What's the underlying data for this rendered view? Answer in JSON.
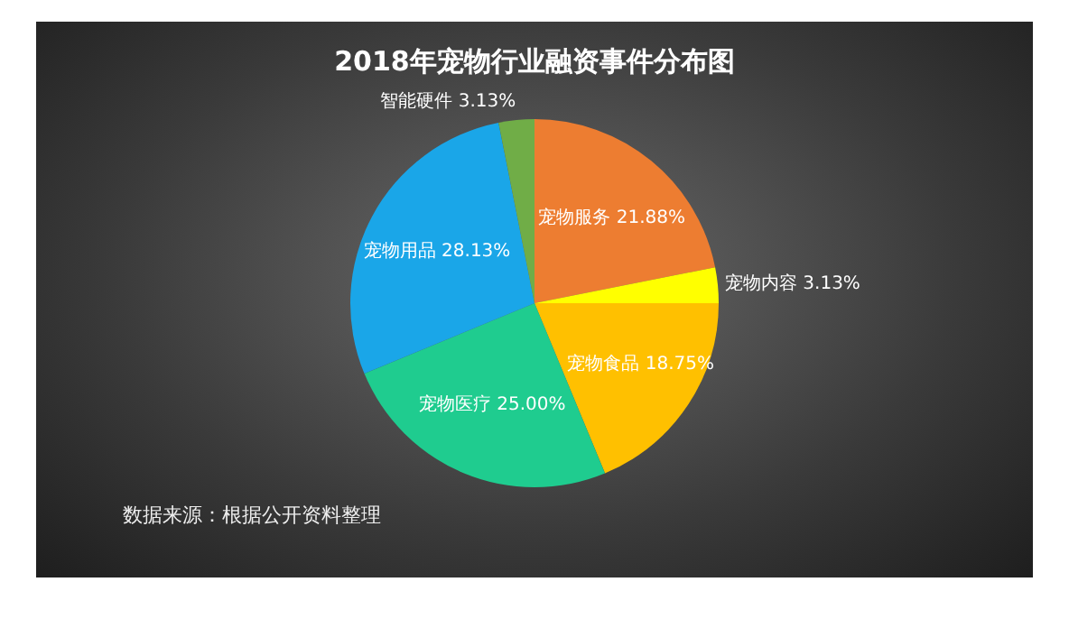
{
  "chart_data": {
    "type": "pie",
    "title": "2018年宠物行业融资事件分布图",
    "categories": [
      "宠物服务",
      "宠物内容",
      "宠物食品",
      "宠物医疗",
      "宠物用品",
      "智能硬件"
    ],
    "values": [
      21.88,
      3.13,
      18.75,
      25.0,
      28.13,
      3.13
    ],
    "value_labels": [
      "21.88%",
      "3.13%",
      "18.75%",
      "25.00%",
      "28.13%",
      "3.13%"
    ],
    "colors": [
      "#ed7d31",
      "#ffff00",
      "#ffc000",
      "#1fcc8f",
      "#1aa6e8",
      "#70ad47"
    ],
    "legend": false,
    "annotations": [
      "数据来源：根据公开资料整理"
    ]
  }
}
